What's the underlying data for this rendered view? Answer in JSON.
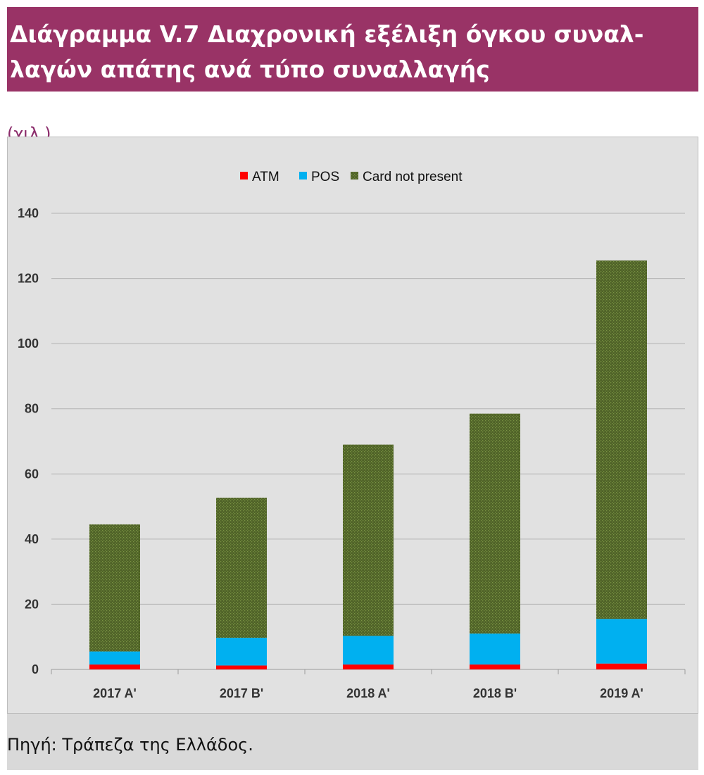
{
  "header": {
    "title_line1": "Διάγραμμα V.7 Διαχρονική εξέλιξη όγκου συναλ-",
    "title_line2": "λαγών απάτης ανά τύπο συναλλαγής"
  },
  "unit_label": "(χιλ.)",
  "source": "Πηγή: Τράπεζα της Ελλάδος.",
  "colors": {
    "banner": "#993366",
    "atm": "#ff0000",
    "pos": "#00b0f0",
    "cnp": "#4f6228",
    "cnp_dots": "#7a9443"
  },
  "chart_data": {
    "type": "bar",
    "stacked": true,
    "categories": [
      "2017 A'",
      "2017 B'",
      "2018 A'",
      "2018 B'",
      "2019 A'"
    ],
    "series": [
      {
        "name": "ATM",
        "values": [
          1.5,
          1.2,
          1.5,
          1.5,
          1.8
        ]
      },
      {
        "name": "POS",
        "values": [
          4.0,
          8.5,
          8.8,
          9.5,
          13.7
        ]
      },
      {
        "name": "Card not present",
        "values": [
          39.0,
          43.0,
          58.7,
          67.5,
          110.0
        ]
      }
    ],
    "ylim": [
      0,
      140
    ],
    "yticks": [
      0,
      20,
      40,
      60,
      80,
      100,
      120,
      140
    ],
    "ytick_labels": [
      "0",
      "20",
      "40",
      "60",
      "80",
      "100",
      "120",
      "140"
    ],
    "grid": true,
    "legend_position": "top"
  }
}
